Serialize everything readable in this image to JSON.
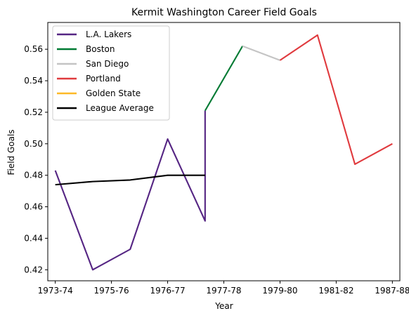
{
  "chart_data": {
    "type": "line",
    "title": "Kermit Washington Career Field Goals",
    "xlabel": "Year",
    "ylabel": "Field Goals",
    "x_tick_labels": [
      "1973-74",
      "1975-76",
      "1976-77",
      "1977-78",
      "1979-80",
      "1981-82",
      "1987-88"
    ],
    "y_tick_labels": [
      "0.42",
      "0.44",
      "0.46",
      "0.48",
      "0.50",
      "0.52",
      "0.54",
      "0.56"
    ],
    "xlim": [
      -0.2,
      9.2
    ],
    "ylim": [
      0.413,
      0.577
    ],
    "legend_position": "upper-left",
    "series": [
      {
        "name": "L.A. Lakers",
        "color": "#552583",
        "points": [
          [
            0,
            0.483
          ],
          [
            1,
            0.42
          ],
          [
            2,
            0.433
          ],
          [
            3,
            0.503
          ],
          [
            4,
            0.451
          ],
          [
            4,
            0.521
          ]
        ]
      },
      {
        "name": "Boston",
        "color": "#007A33",
        "points": [
          [
            4,
            0.521
          ],
          [
            5,
            0.562
          ]
        ]
      },
      {
        "name": "San Diego",
        "color": "#C4C4C4",
        "points": [
          [
            5,
            0.562
          ],
          [
            6,
            0.553
          ]
        ]
      },
      {
        "name": "Portland",
        "color": "#E03A3E",
        "points": [
          [
            6,
            0.553
          ],
          [
            7,
            0.569
          ],
          [
            8,
            0.487
          ],
          [
            9,
            0.5
          ]
        ]
      },
      {
        "name": "Golden State",
        "color": "#FDB927",
        "points": []
      },
      {
        "name": "League Average",
        "color": "#000000",
        "points": [
          [
            0,
            0.474
          ],
          [
            1,
            0.476
          ],
          [
            2,
            0.477
          ],
          [
            3,
            0.48
          ],
          [
            4,
            0.48
          ]
        ]
      }
    ]
  }
}
